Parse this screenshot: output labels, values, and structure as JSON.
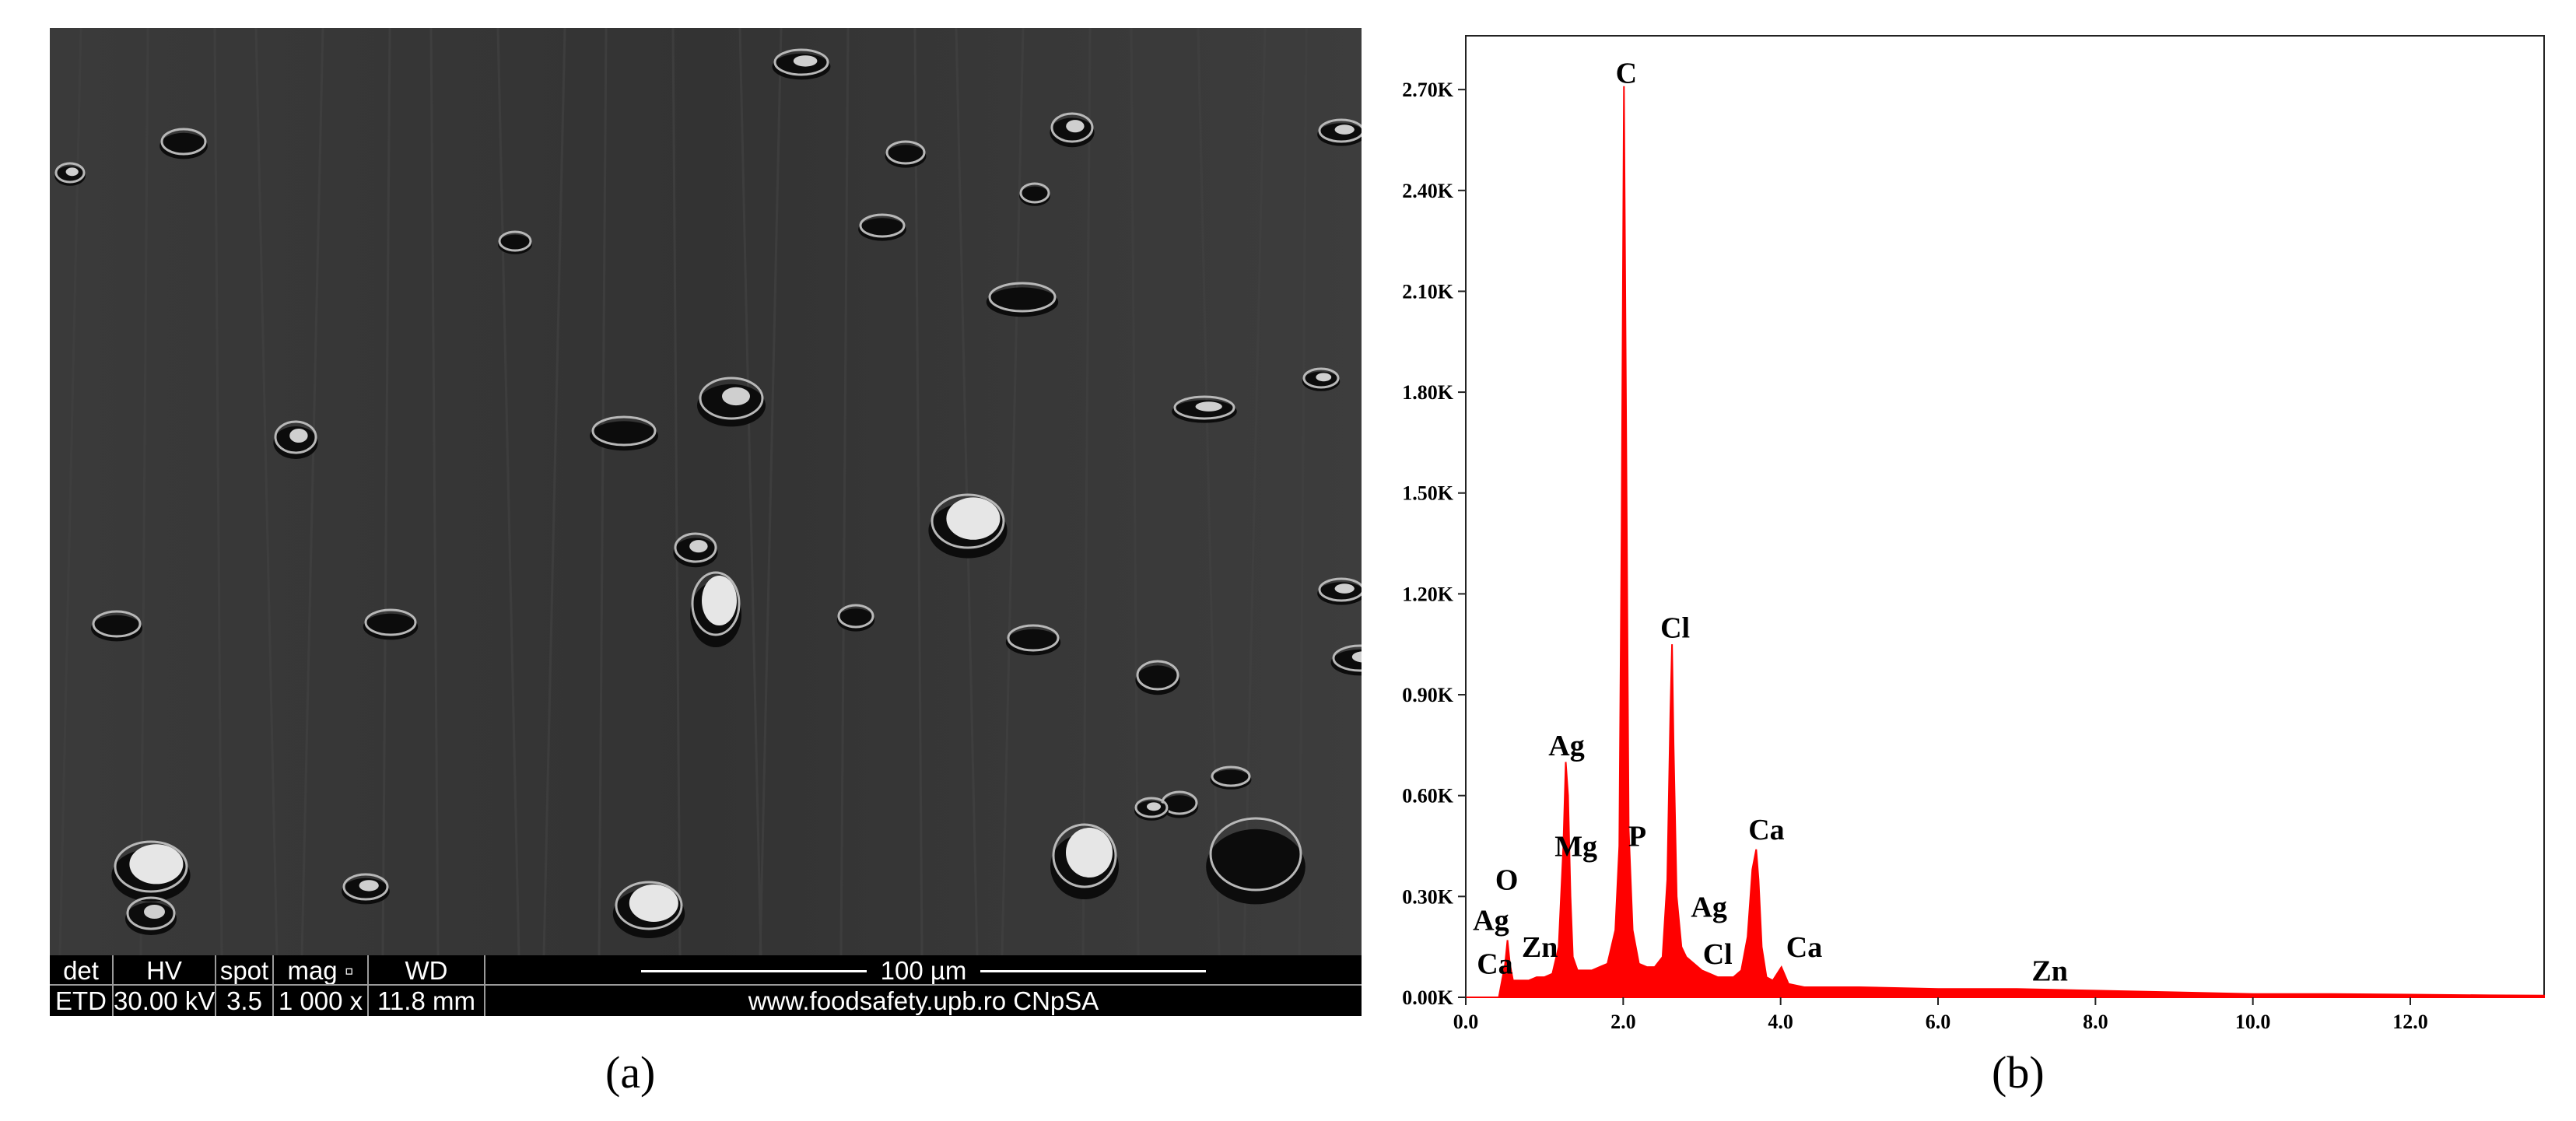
{
  "panel_labels": {
    "a": "(a)",
    "b": "(b)"
  },
  "sem": {
    "info_bar": {
      "headers": [
        "det",
        "HV",
        "spot",
        "mag ▫",
        "WD"
      ],
      "values": [
        "ETD",
        "30.00 kV",
        "3.5",
        "1 000 x",
        "11.8 mm"
      ],
      "scale_bar_label": "100 µm",
      "credit": "www.foodsafety.upb.ro CNpSA"
    }
  },
  "chart_data": {
    "type": "line",
    "title": "",
    "xlabel": "",
    "ylabel": "",
    "xlim": [
      0,
      13.7
    ],
    "ylim": [
      0,
      2.86
    ],
    "xticks": [
      0.0,
      2.0,
      4.0,
      6.0,
      8.0,
      10.0,
      12.0
    ],
    "xtick_labels": [
      "0.0",
      "2.0",
      "4.0",
      "6.0",
      "8.0",
      "10.0",
      "12.0"
    ],
    "yticks": [
      0.0,
      0.3,
      0.6,
      0.9,
      1.2,
      1.5,
      1.8,
      2.1,
      2.4,
      2.7
    ],
    "ytick_labels": [
      "0.00K",
      "0.30K",
      "0.60K",
      "0.90K",
      "1.20K",
      "1.50K",
      "1.80K",
      "2.10K",
      "2.40K",
      "2.70K"
    ],
    "grid": false,
    "fill_color": "#ff0000",
    "series": [
      {
        "x": [
          0,
          0.42,
          0.5,
          0.53,
          0.56,
          0.6,
          0.7,
          0.8,
          0.9,
          1.0,
          1.1,
          1.18,
          1.24,
          1.27,
          1.3,
          1.33,
          1.36,
          1.42,
          1.5,
          1.6,
          1.7,
          1.8,
          1.9,
          1.95,
          1.98,
          2.01,
          2.04,
          2.07,
          2.12,
          2.2,
          2.3,
          2.4,
          2.5,
          2.56,
          2.6,
          2.62,
          2.64,
          2.68,
          2.74,
          2.8,
          2.9,
          3.0,
          3.1,
          3.2,
          3.3,
          3.4,
          3.5,
          3.58,
          3.64,
          3.69,
          3.72,
          3.76,
          3.82,
          3.9,
          4.01,
          4.1,
          4.3,
          5.0,
          6.0,
          7.0,
          8.0,
          9.0,
          10.0,
          11.0,
          12.0,
          13.0,
          13.7
        ],
        "y": [
          0,
          0,
          0.1,
          0.17,
          0.1,
          0.05,
          0.05,
          0.05,
          0.06,
          0.06,
          0.07,
          0.15,
          0.45,
          0.7,
          0.6,
          0.3,
          0.12,
          0.08,
          0.08,
          0.08,
          0.09,
          0.1,
          0.2,
          0.45,
          1.4,
          2.71,
          1.6,
          0.5,
          0.2,
          0.1,
          0.09,
          0.09,
          0.12,
          0.35,
          0.85,
          1.05,
          0.75,
          0.3,
          0.15,
          0.12,
          0.1,
          0.08,
          0.07,
          0.06,
          0.06,
          0.06,
          0.08,
          0.18,
          0.38,
          0.44,
          0.35,
          0.15,
          0.06,
          0.05,
          0.09,
          0.04,
          0.03,
          0.03,
          0.025,
          0.025,
          0.02,
          0.015,
          0.01,
          0.01,
          0.008,
          0.006,
          0.005
        ]
      }
    ],
    "annotations": [
      {
        "text": "C",
        "x": 2.04,
        "y": 2.72
      },
      {
        "text": "Cl",
        "x": 2.66,
        "y": 1.07
      },
      {
        "text": "Ag",
        "x": 1.28,
        "y": 0.72
      },
      {
        "text": "Mg",
        "x": 1.4,
        "y": 0.42
      },
      {
        "text": "P",
        "x": 2.18,
        "y": 0.45
      },
      {
        "text": "Ca",
        "x": 3.82,
        "y": 0.47
      },
      {
        "text": "O",
        "x": 0.52,
        "y": 0.32
      },
      {
        "text": "Ag",
        "x": 0.32,
        "y": 0.2
      },
      {
        "text": "Zn",
        "x": 0.94,
        "y": 0.12
      },
      {
        "text": "Ca",
        "x": 0.37,
        "y": 0.07
      },
      {
        "text": "Ag",
        "x": 3.09,
        "y": 0.24
      },
      {
        "text": "Cl",
        "x": 3.2,
        "y": 0.1
      },
      {
        "text": "Ca",
        "x": 4.3,
        "y": 0.12
      },
      {
        "text": "Zn",
        "x": 7.42,
        "y": 0.05
      }
    ]
  }
}
